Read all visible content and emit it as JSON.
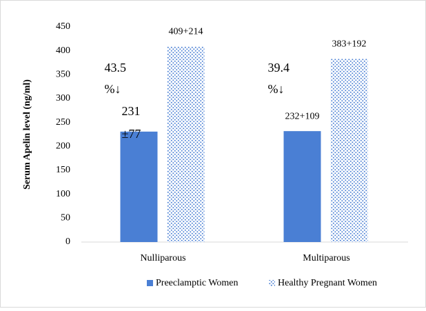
{
  "chart_data": {
    "type": "bar",
    "y_label": "Serum Apelin level (ng/ml)",
    "categories": [
      "Nulliparous",
      "Multiparous"
    ],
    "series": [
      {
        "name": "Preeclamptic Women",
        "color": "#4a7fd4",
        "values": [
          231,
          232
        ],
        "value_labels": [
          "231 ±77",
          "232+109"
        ]
      },
      {
        "name": "Healthy Pregnant Women",
        "color": "#4a7fd4",
        "pattern": "dots",
        "values": [
          409,
          383
        ],
        "value_labels": [
          "409+214",
          "383+192"
        ]
      }
    ],
    "annotations": [
      "43.5 %↓",
      "39.4 %↓"
    ],
    "ylim": [
      0,
      450
    ],
    "yticks": [
      0,
      50,
      100,
      150,
      200,
      250,
      300,
      350,
      400,
      450
    ],
    "legend": "bottom"
  }
}
